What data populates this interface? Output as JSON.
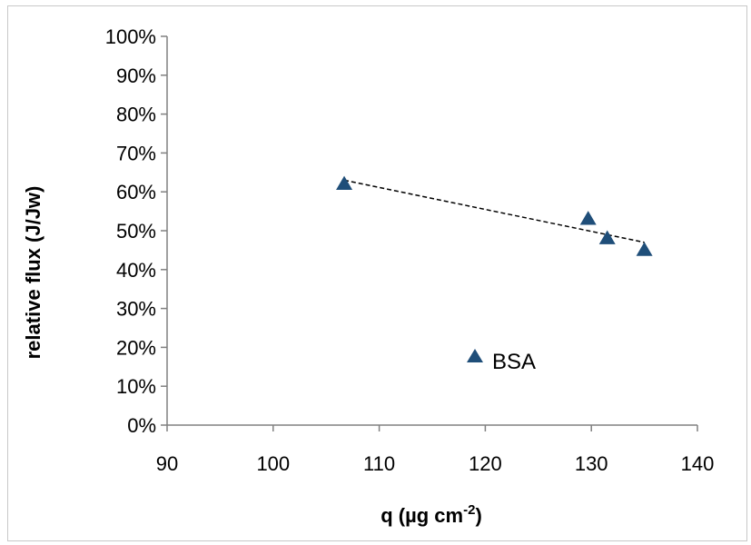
{
  "chart_data": {
    "type": "scatter",
    "title": "",
    "xlabel": "q (µg cm",
    "xlabel_superscript": "-2",
    "xlabel_close": ")",
    "ylabel": "relative flux (J/Jw)",
    "xlim": [
      90,
      140
    ],
    "ylim": [
      0,
      100
    ],
    "x_ticks": [
      "90",
      "100",
      "110",
      "120",
      "130",
      "140"
    ],
    "y_ticks": [
      "0%",
      "10%",
      "20%",
      "30%",
      "40%",
      "50%",
      "60%",
      "70%",
      "80%",
      "90%",
      "100%"
    ],
    "series": [
      {
        "name": "BSA",
        "marker": "triangle",
        "color": "#1f4e79",
        "points": [
          {
            "x": 106.7,
            "y": 62
          },
          {
            "x": 129.7,
            "y": 53
          },
          {
            "x": 131.5,
            "y": 48
          },
          {
            "x": 135.0,
            "y": 45
          }
        ]
      }
    ],
    "trendline": {
      "style": "dashed",
      "color": "#000000",
      "from": {
        "x": 106.7,
        "y": 63
      },
      "to": {
        "x": 135.0,
        "y": 47
      }
    },
    "legend": {
      "placement": "inside-bottom-center"
    },
    "grid": false
  }
}
